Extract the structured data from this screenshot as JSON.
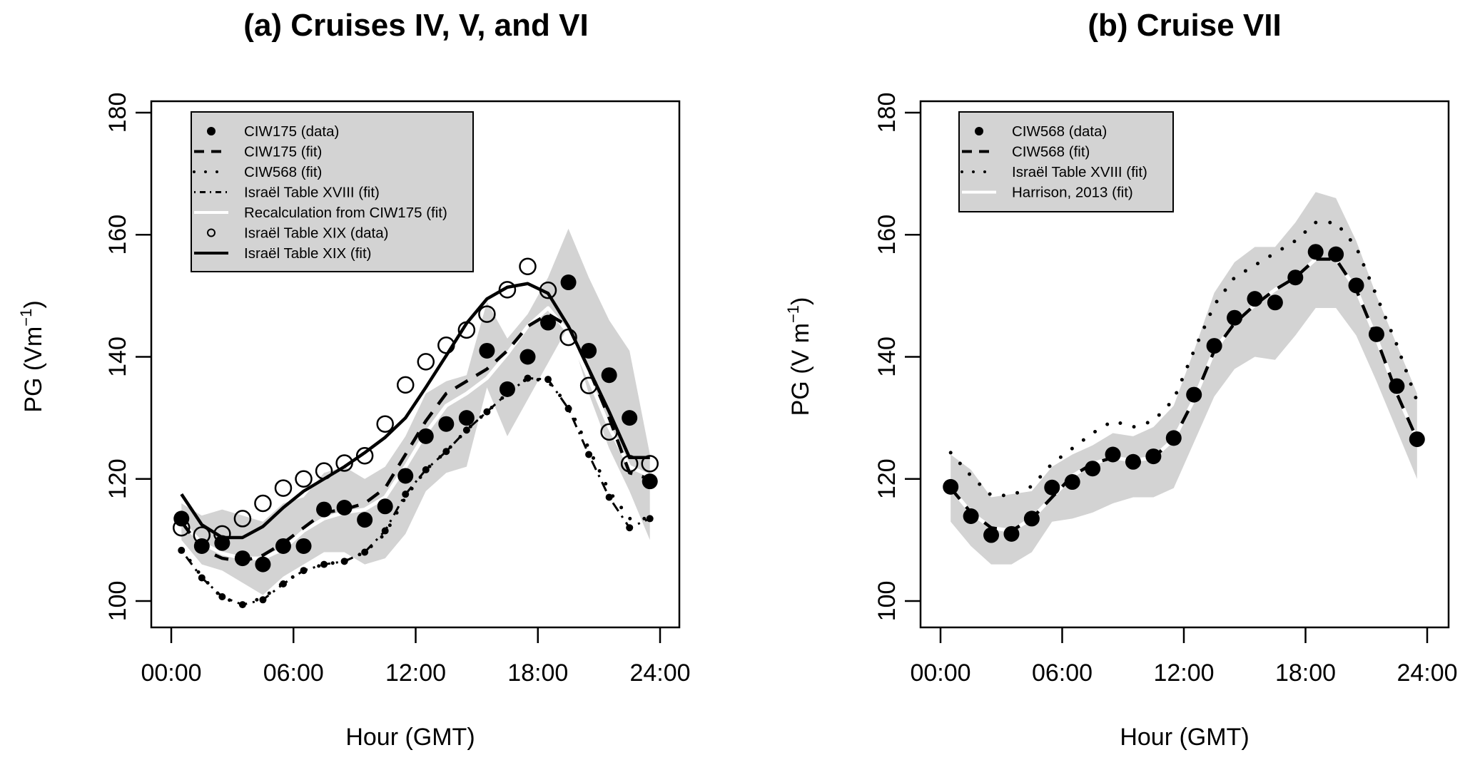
{
  "chart_data": [
    {
      "type": "line",
      "title": "(a) Cruises IV, V, and VI",
      "xlabel": "Hour (GMT)",
      "ylabel": "PG (Vm",
      "ylabel_sup": "−1",
      "ylabel_close": ")",
      "xlim": [
        0,
        24
      ],
      "ylim": [
        100,
        180
      ],
      "x_ticks": [
        0,
        6,
        12,
        18,
        24
      ],
      "x_tick_labels": [
        "00:00",
        "06:00",
        "12:00",
        "18:00",
        "24:00"
      ],
      "y_ticks": [
        100,
        120,
        140,
        160,
        180
      ],
      "y_tick_labels": [
        "100",
        "120",
        "140",
        "160",
        "180"
      ],
      "grid": false,
      "legend_position": "top-left",
      "x": [
        0.5,
        1.5,
        2.5,
        3.5,
        4.5,
        5.5,
        6.5,
        7.5,
        8.5,
        9.5,
        10.5,
        11.5,
        12.5,
        13.5,
        14.5,
        15.5,
        16.5,
        17.5,
        18.5,
        19.5,
        20.5,
        21.5,
        22.5,
        23.5
      ],
      "band": {
        "name": "uncertainty range",
        "color": "#d3d3d3",
        "lower": [
          110,
          106,
          105,
          103,
          101,
          104,
          106,
          108,
          108,
          106,
          107,
          111,
          118,
          121,
          122,
          135,
          127,
          133,
          139,
          145,
          134,
          125,
          118,
          110
        ],
        "upper": [
          116,
          114,
          115,
          114,
          113,
          116,
          117,
          121,
          122,
          120,
          122,
          127,
          134,
          136,
          137,
          149,
          143,
          147,
          153,
          161,
          153,
          146,
          141,
          124
        ]
      },
      "series": [
        {
          "name": "CIW175 (data)",
          "style": "filled-circle",
          "values": [
            113.5,
            109,
            109.5,
            107,
            106,
            109,
            109,
            115,
            115.3,
            113.3,
            115.5,
            120.5,
            127,
            129,
            130,
            141,
            134.7,
            140,
            145.6,
            152.2,
            141,
            137,
            130,
            119.6
          ]
        },
        {
          "name": "CIW175 (fit)",
          "style": "dash",
          "values": [
            113,
            108.5,
            107,
            106.5,
            107.5,
            109.5,
            112,
            114.5,
            115,
            116,
            118.5,
            124,
            129.5,
            134,
            136,
            138,
            141,
            145,
            147,
            145,
            138,
            130,
            121,
            120
          ]
        },
        {
          "name": "CIW568 (fit)",
          "style": "dotted",
          "values": [
            108.5,
            104,
            100.5,
            99.5,
            100.5,
            103,
            105,
            106,
            106.5,
            108,
            111,
            117,
            121.5,
            124.5,
            128,
            131,
            134,
            136.5,
            136,
            132,
            125,
            118,
            113.5,
            113.5
          ]
        },
        {
          "name": "Israël Table XVIII (fit)",
          "style": "dot-dash",
          "values": [
            108.3,
            103.8,
            100.7,
            99.4,
            100.2,
            102.8,
            105,
            106,
            106.5,
            108,
            111.5,
            117.5,
            121.5,
            124.5,
            128,
            131,
            134,
            136.5,
            136.3,
            131.5,
            124,
            117,
            112,
            113.5
          ]
        },
        {
          "name": "Recalculation from CIW175 (fit)",
          "style": "white-solid",
          "values": [
            113,
            109.5,
            107.8,
            107,
            107,
            108.5,
            111.5,
            113.5,
            114.5,
            115,
            117,
            122,
            127.5,
            132,
            134,
            136.5,
            140.5,
            145,
            148,
            144,
            136.5,
            128.5,
            122,
            120.5
          ]
        },
        {
          "name": "Israël Table XIX (data)",
          "style": "open-circle",
          "values": [
            112,
            110.8,
            111,
            113.5,
            116,
            118.5,
            120,
            121.3,
            122.6,
            123.8,
            129,
            135.4,
            139.2,
            141.9,
            144.4,
            147,
            151,
            154.8,
            150.9,
            143.2,
            135.3,
            127.7,
            122.5,
            122.5
          ]
        },
        {
          "name": "Israël Table XIX (fit)",
          "style": "solid",
          "values": [
            117.5,
            112.5,
            110.4,
            110.4,
            112.2,
            115.3,
            118,
            120,
            122,
            124.3,
            126.8,
            130,
            135,
            140.2,
            145.5,
            149.5,
            151.4,
            152,
            150.4,
            145,
            138,
            131,
            123.5,
            123.5
          ]
        }
      ]
    },
    {
      "type": "line",
      "title": "(b) Cruise VII",
      "xlabel": "Hour (GMT)",
      "ylabel": "PG (V m",
      "ylabel_sup": "−1",
      "ylabel_close": ")",
      "xlim": [
        0,
        24
      ],
      "ylim": [
        100,
        180
      ],
      "x_ticks": [
        0,
        6,
        12,
        18,
        24
      ],
      "x_tick_labels": [
        "00:00",
        "06:00",
        "12:00",
        "18:00",
        "24:00"
      ],
      "y_ticks": [
        100,
        120,
        140,
        160,
        180
      ],
      "y_tick_labels": [
        "100",
        "120",
        "140",
        "160",
        "180"
      ],
      "grid": false,
      "legend_position": "top-left",
      "x": [
        0.5,
        1.5,
        2.5,
        3.5,
        4.5,
        5.5,
        6.5,
        7.5,
        8.5,
        9.5,
        10.5,
        11.5,
        12.5,
        13.5,
        14.5,
        15.5,
        16.5,
        17.5,
        18.5,
        19.5,
        20.5,
        21.5,
        22.5,
        23.5
      ],
      "band": {
        "name": "uncertainty range",
        "color": "#d3d3d3",
        "lower": [
          113,
          109,
          106,
          106,
          108,
          113,
          113.5,
          114.5,
          116,
          117,
          117,
          118.5,
          126,
          133.5,
          138,
          140,
          139.5,
          143.5,
          148,
          148,
          143.5,
          136,
          128,
          120
        ],
        "upper": [
          124,
          121.5,
          117,
          117.5,
          118,
          122,
          124,
          125.5,
          127.5,
          127,
          128.5,
          132,
          141,
          150.5,
          155.5,
          158,
          158,
          162,
          167,
          166,
          159,
          150,
          142,
          134
        ]
      },
      "series": [
        {
          "name": "CIW568 (data)",
          "style": "filled-circle",
          "values": [
            118.7,
            113.9,
            110.8,
            111,
            113.5,
            118.6,
            119.5,
            121.7,
            124,
            122.8,
            123.7,
            126.7,
            133.8,
            141.8,
            146.4,
            149.5,
            148.9,
            153,
            157.2,
            156.8,
            151.7,
            143.7,
            135.2,
            126.5
          ]
        },
        {
          "name": "CIW568 (fit)",
          "style": "dash",
          "values": [
            118.5,
            114.5,
            112,
            111.5,
            113.5,
            117,
            120.5,
            122.5,
            123.5,
            123,
            123.5,
            126.5,
            133,
            141,
            145.5,
            148.5,
            151,
            153,
            156,
            156,
            151,
            143,
            134,
            126.5
          ]
        },
        {
          "name": "Israël Table XVIII (fit)",
          "style": "dotted",
          "values": [
            124.3,
            120.5,
            117.3,
            117.3,
            118.8,
            122.5,
            125,
            127.5,
            129.5,
            128.5,
            129.5,
            133,
            141,
            148.5,
            153,
            155,
            157,
            159,
            162,
            162,
            158,
            150,
            142,
            132.7
          ]
        },
        {
          "name": "Harrison, 2013 (fit)",
          "style": "white-solid",
          "values": [
            118.5,
            114.5,
            112,
            111.5,
            113.5,
            117,
            120.5,
            122.5,
            123.5,
            123,
            123.5,
            126.5,
            133,
            141,
            145.5,
            148.5,
            151,
            153,
            156,
            156,
            151,
            143,
            134,
            126.5
          ]
        }
      ]
    }
  ]
}
